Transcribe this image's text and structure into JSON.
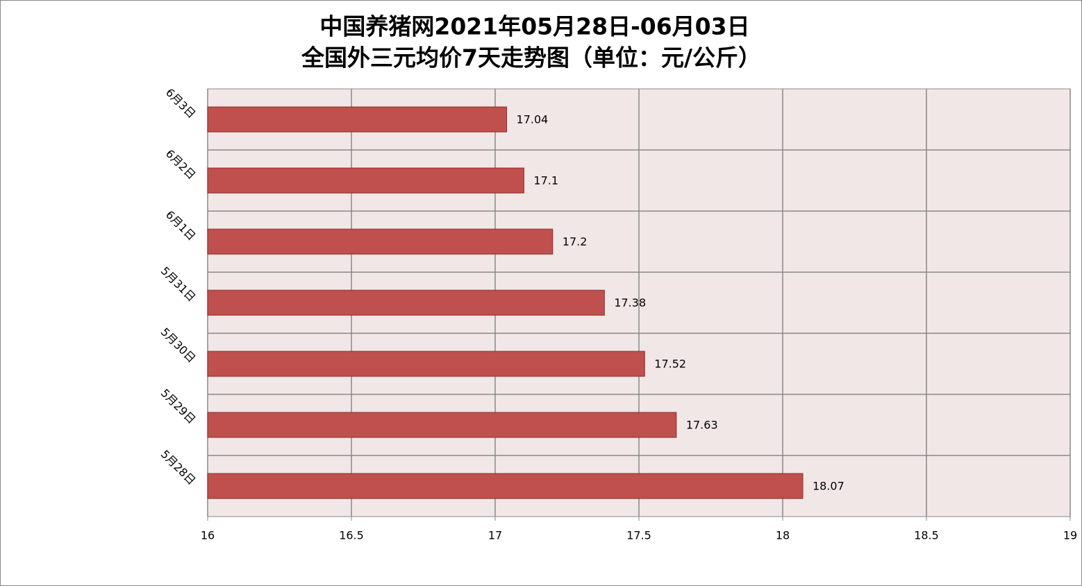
{
  "chart_data": {
    "type": "barh",
    "title": [
      "中国养猪网2021年05月28日-06月03日",
      "全国外三元均价7天走势图（单位：元/公斤）"
    ],
    "categories": [
      "6月3日",
      "6月2日",
      "6月1日",
      "5月31日",
      "5月30日",
      "5月29日",
      "5月28日"
    ],
    "values": [
      17.04,
      17.1,
      17.2,
      17.38,
      17.52,
      17.63,
      18.07
    ],
    "color": "#c0504d",
    "xlim": [
      16,
      19
    ],
    "xticks": [
      16,
      16.5,
      17,
      17.5,
      18,
      18.5,
      19
    ],
    "grid": true
  }
}
